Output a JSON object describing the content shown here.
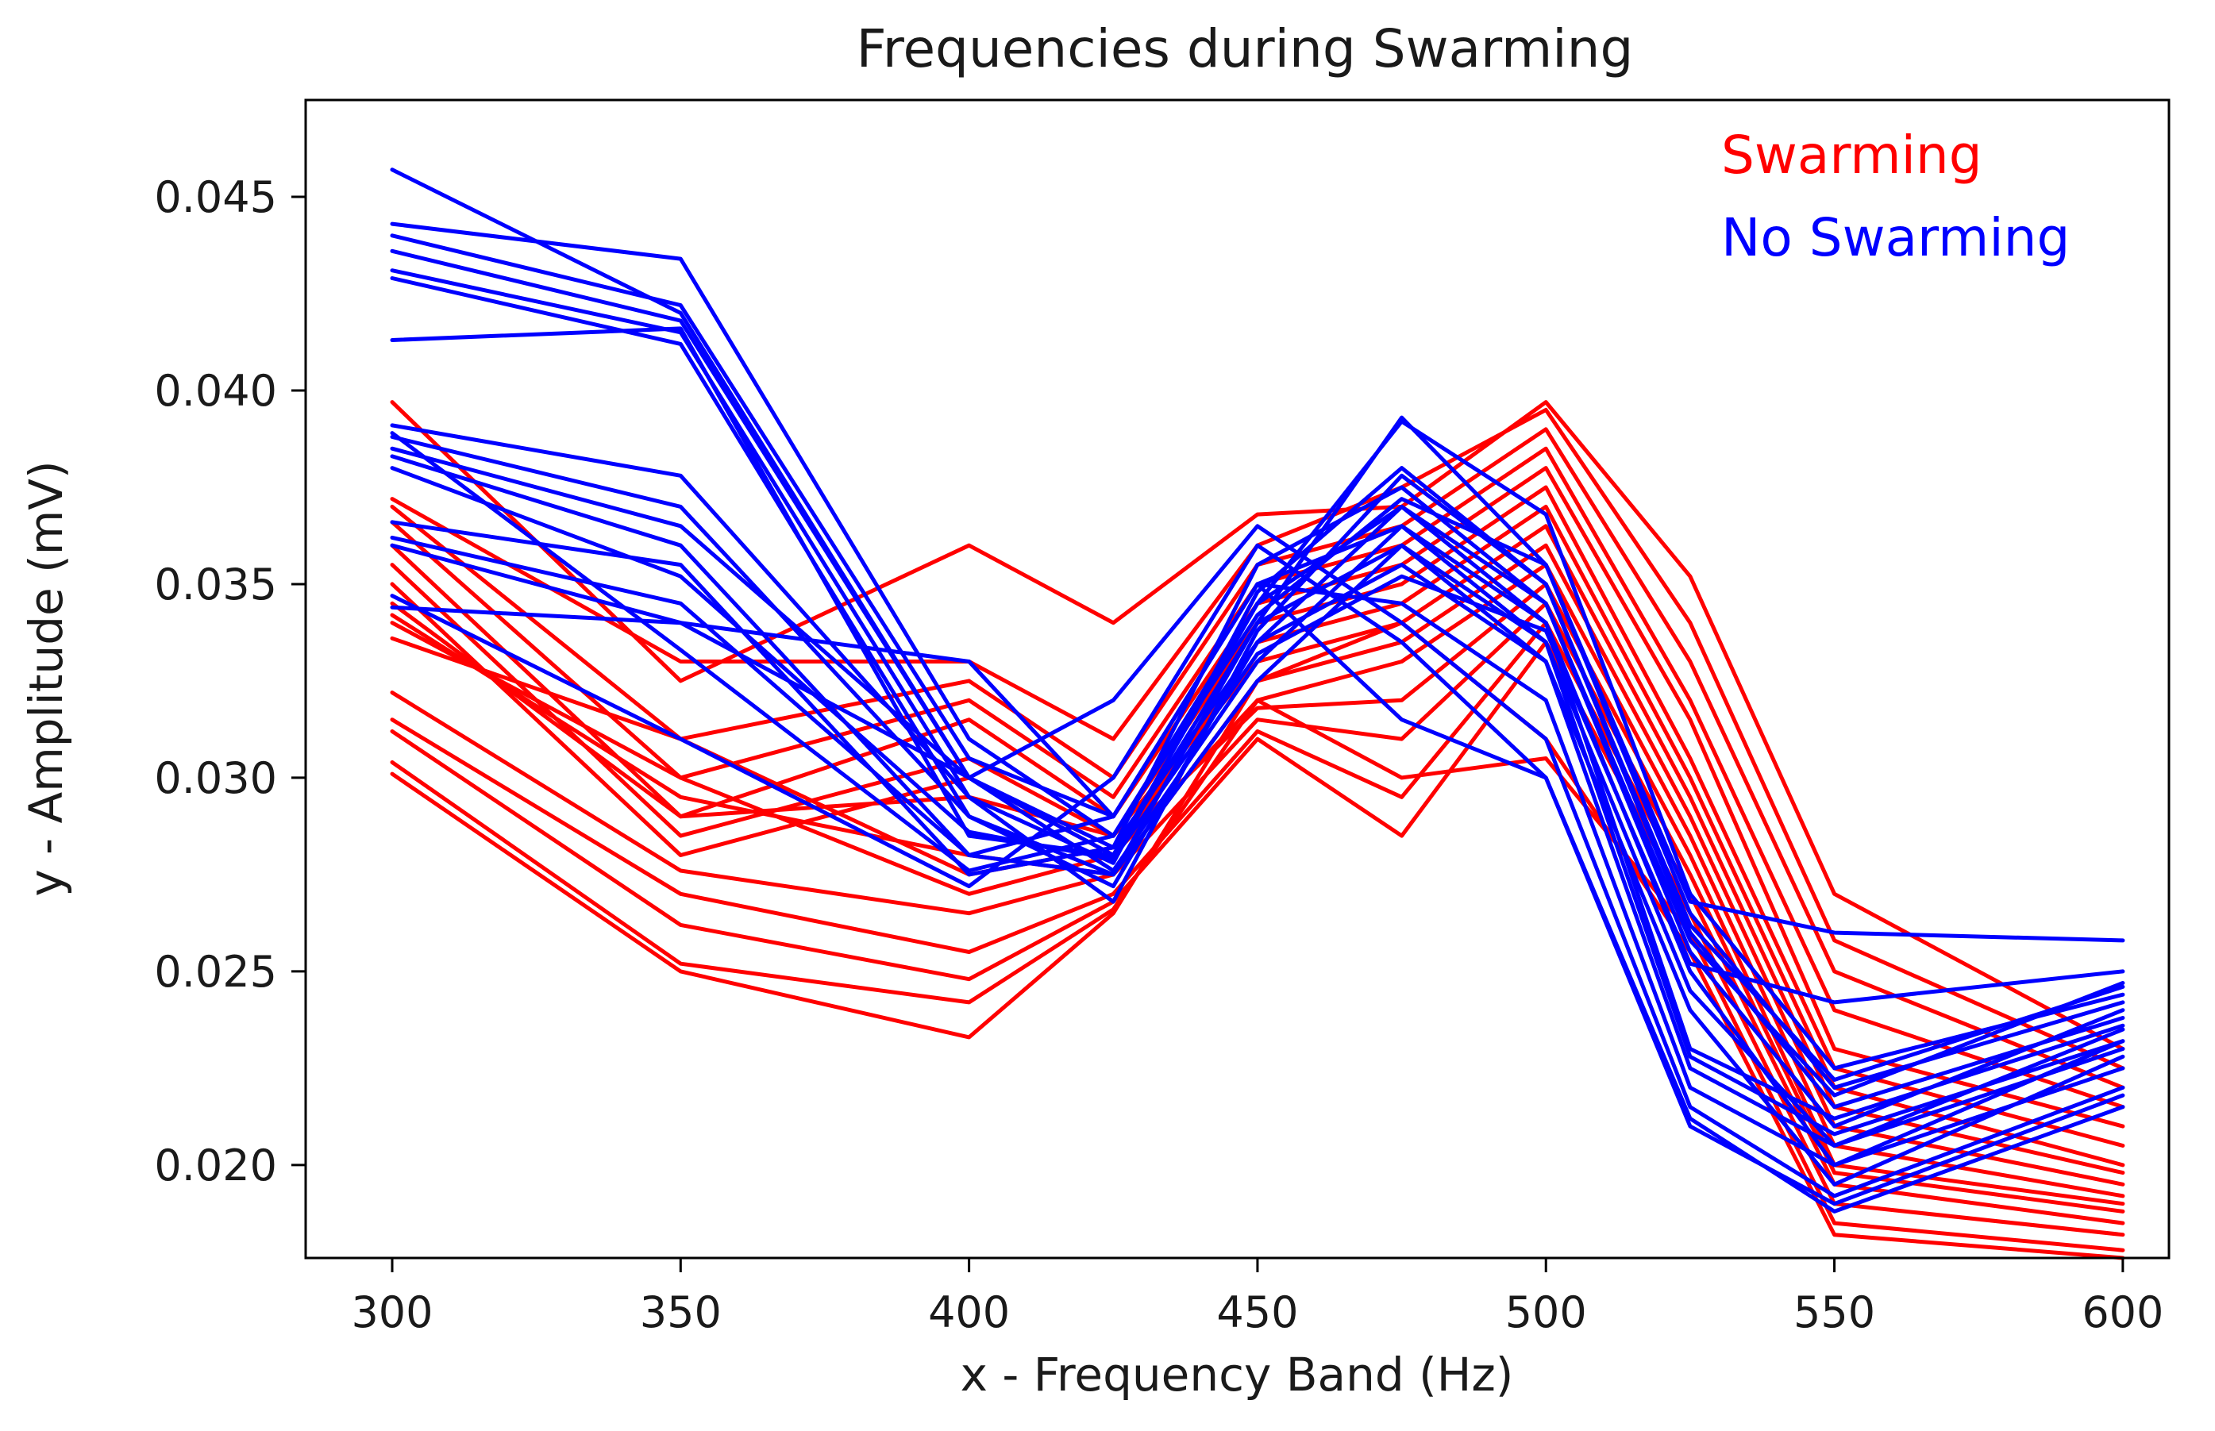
{
  "chart_data": {
    "type": "line",
    "title": "Frequencies during Swarming",
    "xlabel": "x - Frequency Band (Hz)",
    "ylabel": "y - Amplitude (mV)",
    "x": [
      300,
      350,
      400,
      425,
      450,
      475,
      500,
      525,
      550,
      600
    ],
    "xticks": [
      300,
      350,
      400,
      450,
      500,
      550,
      600
    ],
    "yticks": [
      0.02,
      0.025,
      0.03,
      0.035,
      0.04,
      0.045
    ],
    "ytick_labels": [
      "0.020",
      "0.025",
      "0.030",
      "0.035",
      "0.040",
      "0.045"
    ],
    "xlim": [
      285,
      608
    ],
    "ylim": [
      0.0176,
      0.0475
    ],
    "grid": false,
    "legend": {
      "placement": "top-right",
      "entries": [
        {
          "label": "Swarming",
          "color": "#ff0000"
        },
        {
          "label": "No Swarming",
          "color": "#0000ff"
        }
      ]
    },
    "groups": [
      {
        "name": "Swarming",
        "color": "#ff0000",
        "series": [
          [
            0.0397,
            0.0325,
            0.036,
            0.034,
            0.0368,
            0.037,
            0.0397,
            0.0352,
            0.027,
            0.023
          ],
          [
            0.0372,
            0.033,
            0.033,
            0.031,
            0.036,
            0.0375,
            0.0395,
            0.034,
            0.0258,
            0.0225
          ],
          [
            0.037,
            0.031,
            0.0325,
            0.03,
            0.0355,
            0.0365,
            0.039,
            0.033,
            0.025,
            0.022
          ],
          [
            0.0366,
            0.03,
            0.032,
            0.0295,
            0.035,
            0.036,
            0.0385,
            0.032,
            0.024,
            0.0215
          ],
          [
            0.036,
            0.029,
            0.0315,
            0.029,
            0.0345,
            0.0355,
            0.038,
            0.0315,
            0.023,
            0.021
          ],
          [
            0.0355,
            0.0285,
            0.0305,
            0.0285,
            0.034,
            0.035,
            0.0375,
            0.0305,
            0.0225,
            0.0205
          ],
          [
            0.035,
            0.028,
            0.03,
            0.028,
            0.0335,
            0.0345,
            0.037,
            0.03,
            0.022,
            0.02
          ],
          [
            0.0345,
            0.029,
            0.0295,
            0.0285,
            0.033,
            0.034,
            0.0365,
            0.0295,
            0.0215,
            0.0198
          ],
          [
            0.0342,
            0.0295,
            0.028,
            0.0275,
            0.0325,
            0.0335,
            0.036,
            0.029,
            0.021,
            0.0195
          ],
          [
            0.034,
            0.03,
            0.027,
            0.028,
            0.032,
            0.033,
            0.0355,
            0.0285,
            0.0205,
            0.0192
          ],
          [
            0.0336,
            0.031,
            0.0275,
            0.0282,
            0.0318,
            0.032,
            0.035,
            0.028,
            0.02,
            0.019
          ],
          [
            0.0322,
            0.0276,
            0.0265,
            0.0275,
            0.0315,
            0.031,
            0.0345,
            0.0275,
            0.0198,
            0.0188
          ],
          [
            0.0315,
            0.027,
            0.0255,
            0.027,
            0.0312,
            0.0295,
            0.034,
            0.027,
            0.0195,
            0.0185
          ],
          [
            0.0312,
            0.0262,
            0.0248,
            0.0268,
            0.031,
            0.0285,
            0.0335,
            0.0265,
            0.019,
            0.0182
          ],
          [
            0.0304,
            0.0252,
            0.0242,
            0.0266,
            0.032,
            0.03,
            0.0305,
            0.026,
            0.0185,
            0.0178
          ],
          [
            0.0301,
            0.025,
            0.0233,
            0.0265,
            0.0325,
            0.034,
            0.031,
            0.0255,
            0.0182,
            0.0176
          ]
        ]
      },
      {
        "name": "No Swarming",
        "color": "#0000ff",
        "series": [
          [
            0.0457,
            0.042,
            0.03,
            0.028,
            0.034,
            0.036,
            0.033,
            0.024,
            0.0195,
            0.0228
          ],
          [
            0.0443,
            0.0434,
            0.031,
            0.0285,
            0.0345,
            0.037,
            0.034,
            0.025,
            0.02,
            0.0232
          ],
          [
            0.044,
            0.0422,
            0.0305,
            0.029,
            0.035,
            0.0365,
            0.0335,
            0.0245,
            0.0205,
            0.0235
          ],
          [
            0.0436,
            0.0418,
            0.03,
            0.0282,
            0.0355,
            0.0375,
            0.0345,
            0.0255,
            0.021,
            0.024
          ],
          [
            0.0431,
            0.0415,
            0.0295,
            0.0278,
            0.0348,
            0.038,
            0.035,
            0.026,
            0.0215,
            0.0238
          ],
          [
            0.0429,
            0.0412,
            0.029,
            0.0275,
            0.034,
            0.0393,
            0.0355,
            0.0265,
            0.022,
            0.0242
          ],
          [
            0.0413,
            0.0416,
            0.0285,
            0.028,
            0.0345,
            0.0392,
            0.0368,
            0.027,
            0.0225,
            0.0244
          ],
          [
            0.0391,
            0.0378,
            0.0295,
            0.0268,
            0.0338,
            0.0378,
            0.035,
            0.0262,
            0.0222,
            0.0246
          ],
          [
            0.0388,
            0.037,
            0.029,
            0.0272,
            0.0335,
            0.037,
            0.0345,
            0.0258,
            0.0218,
            0.0247
          ],
          [
            0.0385,
            0.0365,
            0.03,
            0.0276,
            0.033,
            0.0365,
            0.034,
            0.023,
            0.0212,
            0.0236
          ],
          [
            0.0383,
            0.036,
            0.028,
            0.0275,
            0.0325,
            0.036,
            0.0335,
            0.0228,
            0.0208,
            0.0232
          ],
          [
            0.0366,
            0.0355,
            0.0275,
            0.0282,
            0.0335,
            0.0355,
            0.033,
            0.0225,
            0.0205,
            0.023
          ],
          [
            0.0362,
            0.0345,
            0.028,
            0.029,
            0.035,
            0.0345,
            0.032,
            0.022,
            0.02,
            0.0225
          ],
          [
            0.036,
            0.034,
            0.03,
            0.032,
            0.0365,
            0.034,
            0.031,
            0.0215,
            0.0192,
            0.022
          ],
          [
            0.0347,
            0.031,
            0.0272,
            0.03,
            0.036,
            0.0335,
            0.03,
            0.021,
            0.019,
            0.0218
          ],
          [
            0.0344,
            0.034,
            0.033,
            0.029,
            0.035,
            0.0315,
            0.03,
            0.0212,
            0.0188,
            0.0215
          ],
          [
            0.0389,
            0.0333,
            0.0276,
            0.0285,
            0.0342,
            0.0372,
            0.0355,
            0.0268,
            0.026,
            0.0258
          ],
          [
            0.038,
            0.0352,
            0.0286,
            0.0279,
            0.0332,
            0.0352,
            0.0338,
            0.0252,
            0.0242,
            0.025
          ]
        ]
      }
    ]
  }
}
